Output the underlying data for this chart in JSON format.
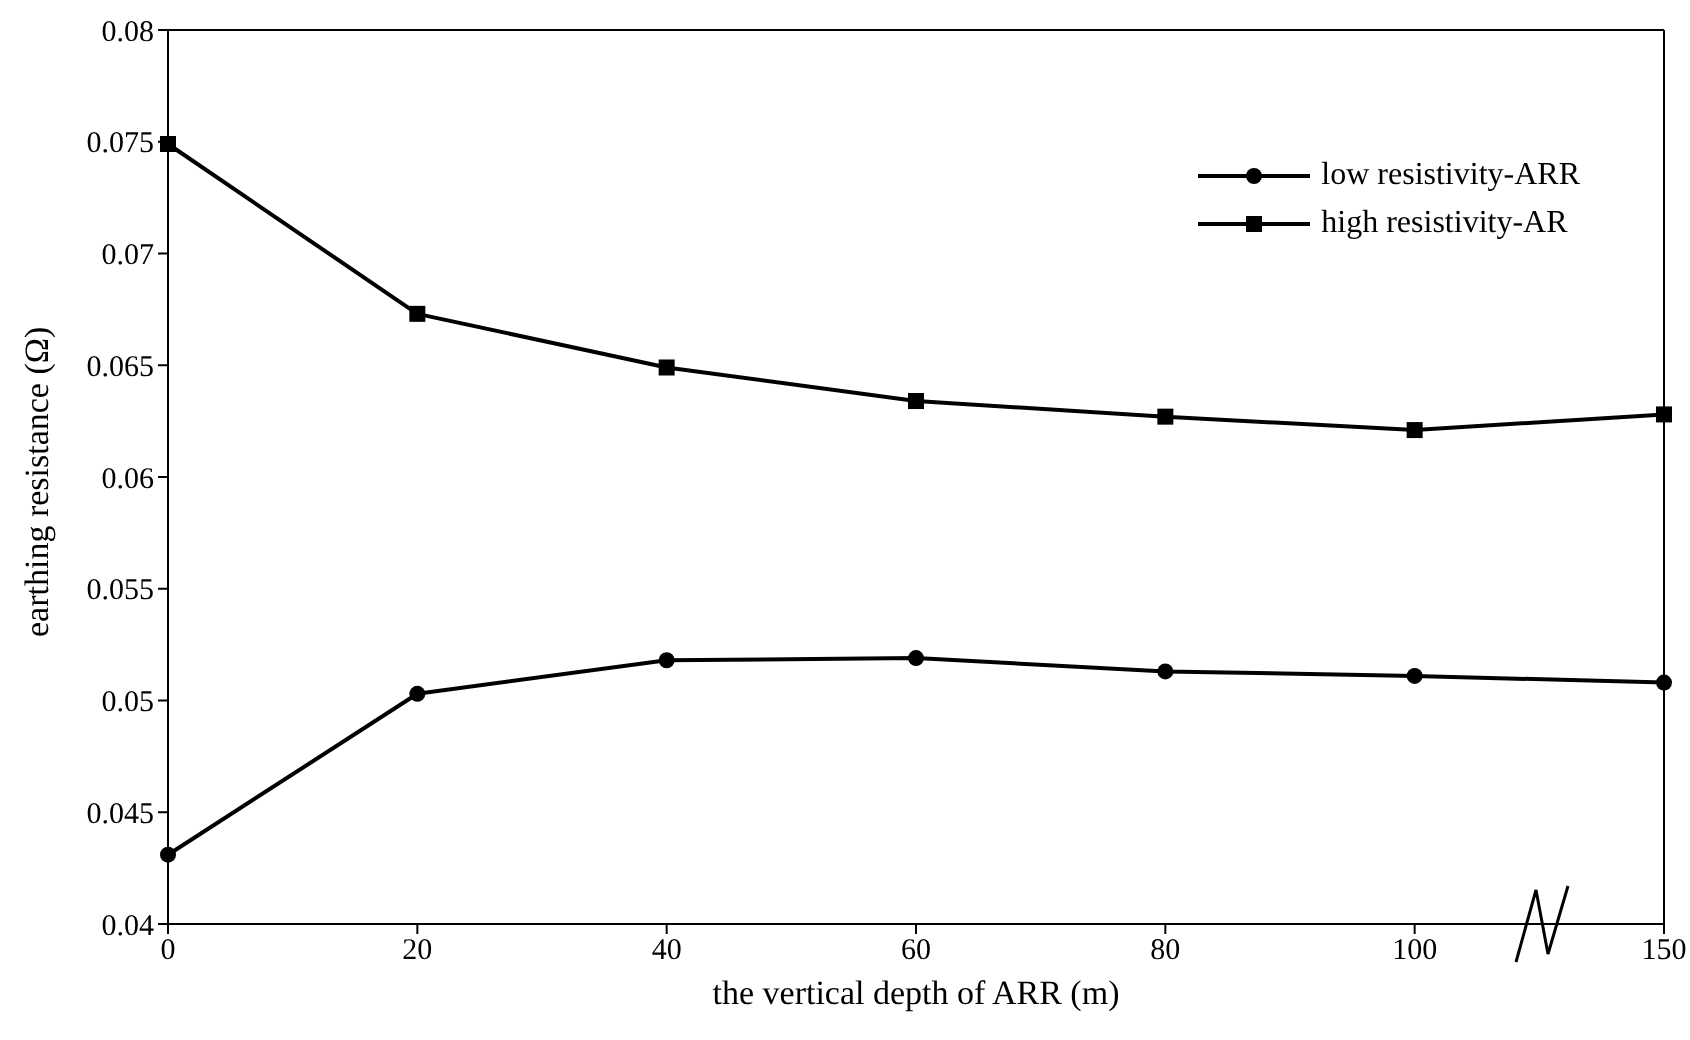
{
  "chart_data": {
    "type": "line",
    "xlabel": "the vertical depth of ARR (m)",
    "ylabel": "earthing resistance (Ω)",
    "categories": [
      "0",
      "20",
      "40",
      "60",
      "80",
      "100",
      "150"
    ],
    "ylim": [
      0.04,
      0.08
    ],
    "yticks": [
      0.04,
      0.045,
      0.05,
      0.055,
      0.06,
      0.065,
      0.07,
      0.075,
      0.08
    ],
    "grid": false,
    "legend": "top right",
    "line_style": "solid",
    "series": [
      {
        "name": "low resistivity-ARR",
        "color": "#000000",
        "marker": "circle",
        "values": [
          0.0431,
          0.0503,
          0.0518,
          0.0519,
          0.0513,
          0.0511,
          0.0508
        ]
      },
      {
        "name": "high resistivity-AR",
        "color": "#000000",
        "marker": "square",
        "values": [
          0.0749,
          0.0673,
          0.0649,
          0.0634,
          0.0627,
          0.0621,
          0.0628
        ]
      }
    ]
  }
}
